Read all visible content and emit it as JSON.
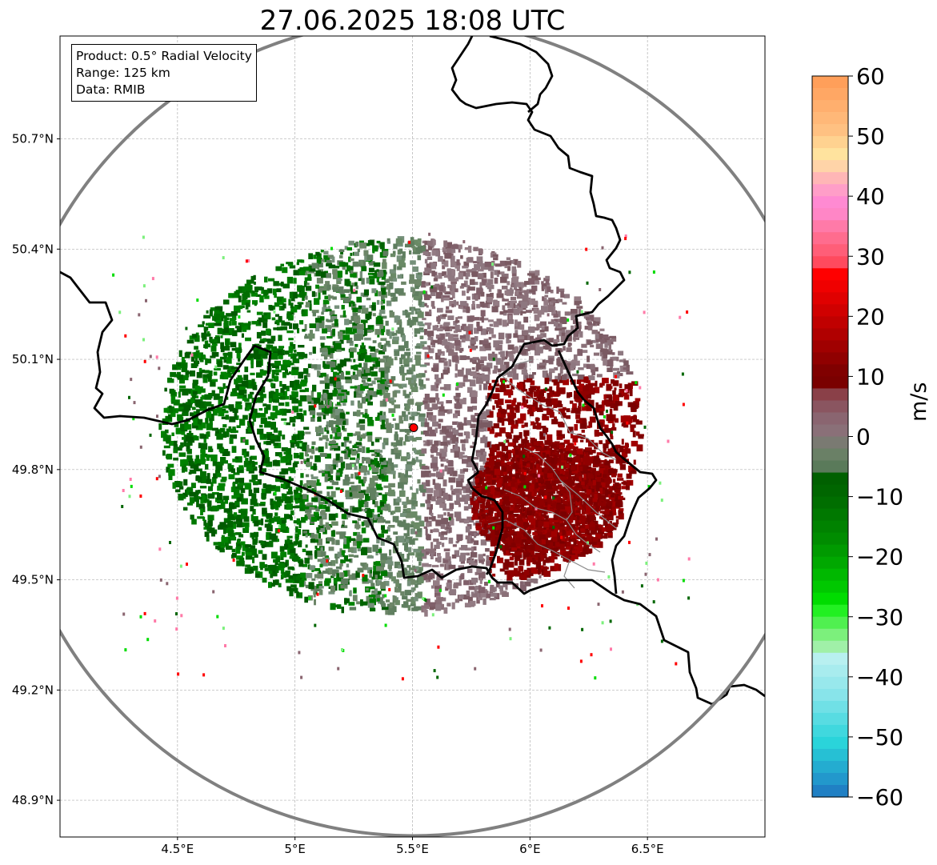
{
  "title": "27.06.2025 18:08 UTC",
  "info": {
    "product": "Product: 0.5° Radial Velocity",
    "range": "Range: 125 km",
    "source": "Data: RMIB"
  },
  "map": {
    "lon_range": [
      4.0,
      7.0
    ],
    "lat_range": [
      48.8,
      50.98
    ],
    "lon_ticks": [
      {
        "value": 4.5,
        "label": "4.5°E"
      },
      {
        "value": 5.0,
        "label": "5°E"
      },
      {
        "value": 5.5,
        "label": "5.5°E"
      },
      {
        "value": 6.0,
        "label": "6°E"
      },
      {
        "value": 6.5,
        "label": "6.5°E"
      }
    ],
    "lat_ticks": [
      {
        "value": 50.7,
        "label": "50.7°N"
      },
      {
        "value": 50.4,
        "label": "50.4°N"
      },
      {
        "value": 50.1,
        "label": "50.1°N"
      },
      {
        "value": 49.8,
        "label": "49.8°N"
      },
      {
        "value": 49.5,
        "label": "49.5°N"
      },
      {
        "value": 49.2,
        "label": "49.2°N"
      },
      {
        "value": 48.9,
        "label": "48.9°N"
      }
    ],
    "radar_site": {
      "lon": 5.505,
      "lat": 49.914
    },
    "range_ring_color": "#808080",
    "radar_marker_color": "#ff0000"
  },
  "colorbar": {
    "unit": "m/s",
    "min": -60,
    "max": 60,
    "ticks": [
      "60",
      "50",
      "40",
      "30",
      "20",
      "10",
      "0",
      "−10",
      "−20",
      "−30",
      "−40",
      "−50",
      "−60"
    ],
    "tick_values": [
      60,
      50,
      40,
      30,
      20,
      10,
      0,
      -10,
      -20,
      -30,
      -40,
      -50,
      -60
    ],
    "bands": [
      {
        "from": 58,
        "to": 60,
        "color": "#ff9f5a"
      },
      {
        "from": 56,
        "to": 58,
        "color": "#ffa764"
      },
      {
        "from": 54,
        "to": 56,
        "color": "#ffaf6e"
      },
      {
        "from": 52,
        "to": 54,
        "color": "#ffb878"
      },
      {
        "from": 50,
        "to": 52,
        "color": "#ffc182"
      },
      {
        "from": 48,
        "to": 50,
        "color": "#ffd290"
      },
      {
        "from": 46,
        "to": 48,
        "color": "#ffe39e"
      },
      {
        "from": 44,
        "to": 46,
        "color": "#ffd4a8"
      },
      {
        "from": 42,
        "to": 44,
        "color": "#ffb6b6"
      },
      {
        "from": 40,
        "to": 42,
        "color": "#ff9ec8"
      },
      {
        "from": 38,
        "to": 40,
        "color": "#ff8ad2"
      },
      {
        "from": 36,
        "to": 38,
        "color": "#ff86c6"
      },
      {
        "from": 34,
        "to": 36,
        "color": "#ff7aa8"
      },
      {
        "from": 32,
        "to": 34,
        "color": "#ff6c8e"
      },
      {
        "from": 30,
        "to": 32,
        "color": "#ff5e78"
      },
      {
        "from": 28,
        "to": 30,
        "color": "#ff4a5e"
      },
      {
        "from": 26,
        "to": 28,
        "color": "#ff0000"
      },
      {
        "from": 24,
        "to": 26,
        "color": "#f00000"
      },
      {
        "from": 22,
        "to": 24,
        "color": "#e00000"
      },
      {
        "from": 20,
        "to": 22,
        "color": "#d00000"
      },
      {
        "from": 18,
        "to": 20,
        "color": "#c00000"
      },
      {
        "from": 16,
        "to": 18,
        "color": "#b00000"
      },
      {
        "from": 14,
        "to": 16,
        "color": "#a00000"
      },
      {
        "from": 12,
        "to": 14,
        "color": "#900000"
      },
      {
        "from": 10,
        "to": 12,
        "color": "#800000"
      },
      {
        "from": 8,
        "to": 10,
        "color": "#7a0000"
      },
      {
        "from": 6,
        "to": 8,
        "color": "#8a4048"
      },
      {
        "from": 4,
        "to": 6,
        "color": "#8a5560"
      },
      {
        "from": 2,
        "to": 4,
        "color": "#8a6570"
      },
      {
        "from": 0,
        "to": 2,
        "color": "#8a7078"
      },
      {
        "from": -2,
        "to": 0,
        "color": "#7a7a72"
      },
      {
        "from": -4,
        "to": -2,
        "color": "#6a8066"
      },
      {
        "from": -6,
        "to": -4,
        "color": "#5a7a5a"
      },
      {
        "from": -8,
        "to": -6,
        "color": "#006000"
      },
      {
        "from": -10,
        "to": -8,
        "color": "#006600"
      },
      {
        "from": -12,
        "to": -10,
        "color": "#006e00"
      },
      {
        "from": -14,
        "to": -12,
        "color": "#007800"
      },
      {
        "from": -16,
        "to": -14,
        "color": "#008200"
      },
      {
        "from": -18,
        "to": -16,
        "color": "#008c00"
      },
      {
        "from": -20,
        "to": -18,
        "color": "#009a00"
      },
      {
        "from": -22,
        "to": -20,
        "color": "#00a800"
      },
      {
        "from": -24,
        "to": -22,
        "color": "#00b800"
      },
      {
        "from": -26,
        "to": -24,
        "color": "#00c800"
      },
      {
        "from": -28,
        "to": -26,
        "color": "#00dc00"
      },
      {
        "from": -30,
        "to": -28,
        "color": "#22f022"
      },
      {
        "from": -32,
        "to": -30,
        "color": "#50f050"
      },
      {
        "from": -34,
        "to": -32,
        "color": "#7cf07c"
      },
      {
        "from": -36,
        "to": -34,
        "color": "#a0f0a8"
      },
      {
        "from": -38,
        "to": -36,
        "color": "#b8f0f0"
      },
      {
        "from": -40,
        "to": -38,
        "color": "#a8ecee"
      },
      {
        "from": -42,
        "to": -40,
        "color": "#98e8ec"
      },
      {
        "from": -44,
        "to": -42,
        "color": "#88e4ea"
      },
      {
        "from": -46,
        "to": -44,
        "color": "#70e0e6"
      },
      {
        "from": -48,
        "to": -46,
        "color": "#58dce2"
      },
      {
        "from": -50,
        "to": -48,
        "color": "#40d8de"
      },
      {
        "from": -52,
        "to": -50,
        "color": "#2ad4da"
      },
      {
        "from": -54,
        "to": -52,
        "color": "#26c0d4"
      },
      {
        "from": -56,
        "to": -54,
        "color": "#24acd0"
      },
      {
        "from": -58,
        "to": -56,
        "color": "#2298cc"
      },
      {
        "from": -60,
        "to": -58,
        "color": "#2080c4"
      }
    ]
  }
}
